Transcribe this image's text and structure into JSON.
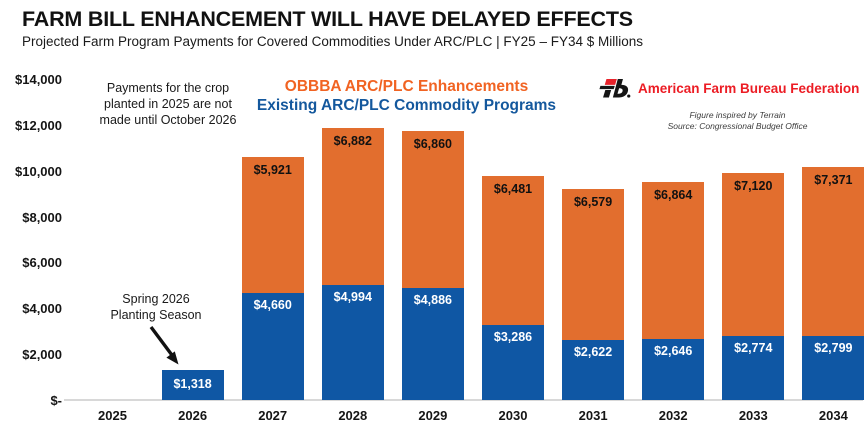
{
  "chart_data": {
    "type": "bar",
    "stacked": true,
    "title": "FARM BILL ENHANCEMENT WILL HAVE DELAYED EFFECTS",
    "subtitle": "Projected Farm Program Payments for Covered Commodities Under ARC/PLC | FY25 – FY34 $ Millions",
    "categories": [
      "2025",
      "2026",
      "2027",
      "2028",
      "2029",
      "2030",
      "2031",
      "2032",
      "2033",
      "2034"
    ],
    "series": [
      {
        "name": "Existing ARC/PLC Commodity Programs",
        "color": "#0F57A4",
        "label_color": "#FFFFFF",
        "values": [
          null,
          1318,
          4660,
          4994,
          4886,
          3286,
          2622,
          2646,
          2774,
          2799
        ]
      },
      {
        "name": "OBBBA ARC/PLC Enhancements",
        "color": "#E26E2E",
        "label_color": "#111111",
        "values": [
          null,
          null,
          5921,
          6882,
          6860,
          6481,
          6579,
          6864,
          7120,
          7371
        ]
      }
    ],
    "ylim": [
      0,
      14000
    ],
    "y_ticks": [
      {
        "value": 0,
        "label": "$-"
      },
      {
        "value": 2000,
        "label": "$2,000"
      },
      {
        "value": 4000,
        "label": "$4,000"
      },
      {
        "value": 6000,
        "label": "$6,000"
      },
      {
        "value": 8000,
        "label": "$8,000"
      },
      {
        "value": 10000,
        "label": "$10,000"
      },
      {
        "value": 12000,
        "label": "$12,000"
      },
      {
        "value": 14000,
        "label": "$14,000"
      }
    ],
    "grid": false,
    "legend_position": "top-center",
    "annotations": [
      "Payments for the crop planted in 2025 are not made until October 2026",
      "Spring 2026 Planting Season"
    ]
  },
  "annotations": {
    "payments_note": {
      "lines": [
        "Payments for the crop",
        "planted in 2025 are not",
        "made until October 2026"
      ]
    },
    "planting_note": {
      "lines": [
        "Spring 2026",
        "Planting Season"
      ]
    }
  },
  "branding": {
    "org_name": "American Farm Bureau Federation",
    "credit_line1": "Figure inspired by Terrain",
    "credit_line2": "Source: Congressional Budget Office"
  },
  "colors": {
    "bar_blue": "#0F57A4",
    "bar_orange": "#E26E2E",
    "legend_orange": "#F16322",
    "legend_blue": "#14589D",
    "brand_red": "#EC1C24",
    "axis_line": "#D8D8D8"
  }
}
